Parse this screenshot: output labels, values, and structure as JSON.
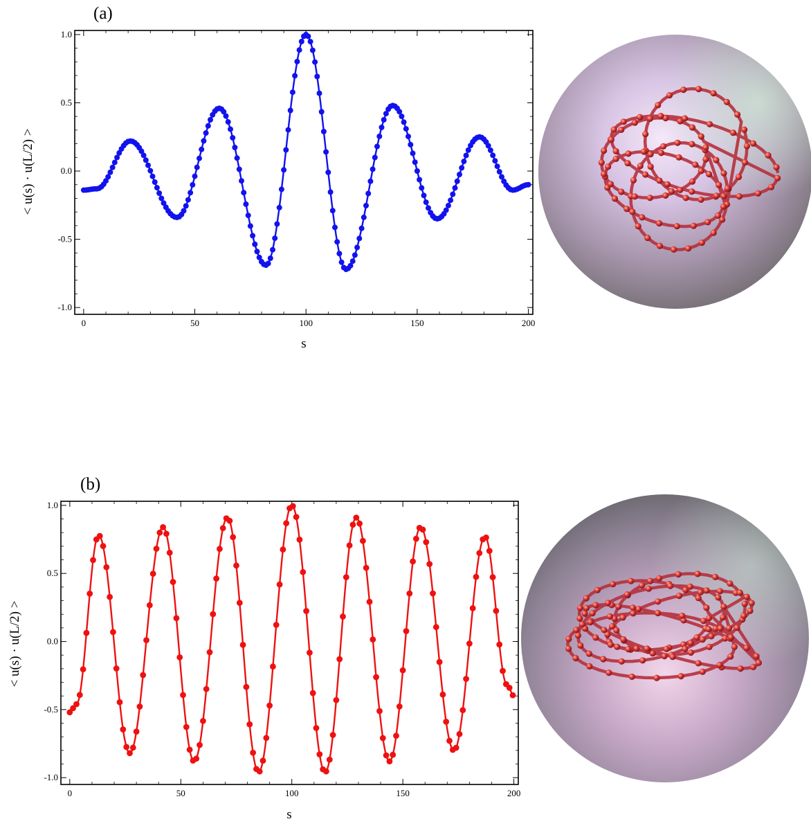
{
  "chart_data": [
    {
      "type": "scatter",
      "panel_label": "(a)",
      "xlabel": "s",
      "ylabel": "< u(s) · u(L/2) >",
      "xlim": [
        -4,
        202
      ],
      "ylim": [
        -1.05,
        1.03
      ],
      "xticks": [
        0,
        50,
        100,
        150,
        200
      ],
      "xtick_labels": [
        "0",
        "50",
        "100",
        "150",
        "200"
      ],
      "yticks": [
        -1.0,
        -0.5,
        0.0,
        0.5,
        1.0
      ],
      "ytick_labels": [
        "-1.0",
        "-0.5",
        "0.0",
        "0.5",
        "1.0"
      ],
      "grid": false,
      "colors": {
        "series": "#1212ee"
      },
      "series": [
        {
          "kind": "points+fit",
          "peaks": [
            [
              0,
              -0.14
            ],
            [
              6,
              -0.13
            ],
            [
              21,
              0.22
            ],
            [
              42,
              -0.34
            ],
            [
              61,
              0.46
            ],
            [
              82,
              -0.69
            ],
            [
              100,
              1.0
            ],
            [
              118,
              -0.72
            ],
            [
              139,
              0.48
            ],
            [
              159,
              -0.35
            ],
            [
              178,
              0.25
            ],
            [
              193,
              -0.14
            ],
            [
              200,
              -0.1
            ]
          ],
          "point_step": 1
        }
      ]
    },
    {
      "type": "scatter",
      "panel_label": "(b)",
      "xlabel": "s",
      "ylabel": "< u(s) · u(L/2) >",
      "xlim": [
        -4,
        202
      ],
      "ylim": [
        -1.05,
        1.03
      ],
      "xticks": [
        0,
        50,
        100,
        150,
        200
      ],
      "xtick_labels": [
        "0",
        "50",
        "100",
        "150",
        "200"
      ],
      "yticks": [
        -1.0,
        -0.5,
        0.0,
        0.5,
        1.0
      ],
      "ytick_labels": [
        "-1.0",
        "-0.5",
        "0.0",
        "0.5",
        "1.0"
      ],
      "grid": false,
      "colors": {
        "series": "#ee1111"
      },
      "series": [
        {
          "kind": "points+fit",
          "peaks": [
            [
              0,
              -0.52
            ],
            [
              3,
              -0.46
            ],
            [
              13,
              0.78
            ],
            [
              27,
              -0.82
            ],
            [
              42,
              0.84
            ],
            [
              56,
              -0.88
            ],
            [
              71,
              0.91
            ],
            [
              85,
              -0.96
            ],
            [
              100,
              1.0
            ],
            [
              115,
              -0.96
            ],
            [
              129,
              0.91
            ],
            [
              144,
              -0.88
            ],
            [
              158,
              0.84
            ],
            [
              173,
              -0.8
            ],
            [
              187,
              0.77
            ],
            [
              197,
              -0.32
            ],
            [
              200,
              -0.4
            ]
          ],
          "point_step": 1
        }
      ]
    }
  ]
}
